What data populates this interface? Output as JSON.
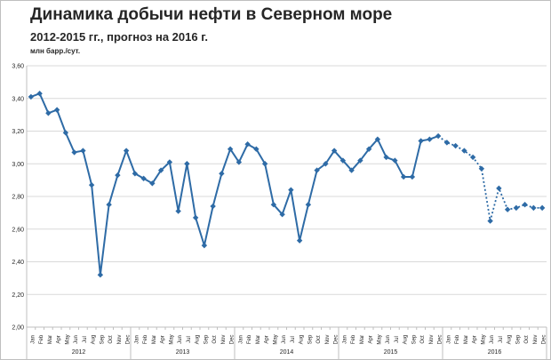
{
  "title": "Динамика добычи нефти в Северном море",
  "subtitle": "2012-2015 гг., прогноз на 2016 г.",
  "unit": "млн барр./сут.",
  "colors": {
    "series": "#2e6ba6",
    "grid": "#d9d9d9",
    "axis": "#bfbfbf"
  },
  "chart_data": {
    "type": "line",
    "ylim": [
      2.0,
      3.6
    ],
    "yticks": [
      "2,00",
      "2,20",
      "2,40",
      "2,60",
      "2,80",
      "3,00",
      "3,20",
      "3,40",
      "3,60"
    ],
    "grid": true,
    "months": [
      "Jan",
      "Feb",
      "Mar",
      "Apr",
      "May",
      "Jun",
      "Jul",
      "Aug",
      "Sep",
      "Oct",
      "Nov",
      "Dec"
    ],
    "years": [
      "2012",
      "2013",
      "2014",
      "2015",
      "2016"
    ],
    "series": [
      {
        "style": "solid",
        "values": [
          3.41,
          3.43,
          3.31,
          3.33,
          3.19,
          3.07,
          3.08,
          2.87,
          2.32,
          2.75,
          2.93,
          3.08,
          2.94,
          2.91,
          2.88,
          2.96,
          3.01,
          2.71,
          3.0,
          2.67,
          2.5,
          2.74,
          2.94,
          3.09,
          3.01,
          3.12,
          3.09,
          3.0,
          2.75,
          2.69,
          2.84,
          2.53,
          2.75,
          2.96,
          3.0,
          3.08,
          3.02,
          2.96,
          3.02,
          3.09,
          3.15,
          3.04,
          3.02,
          2.92,
          2.92,
          3.14,
          3.15,
          3.17
        ]
      },
      {
        "style": "dotted",
        "values": [
          3.13,
          3.11,
          3.08,
          3.04,
          2.97,
          2.65,
          2.85,
          2.72,
          2.73,
          2.75,
          2.73,
          2.73
        ]
      }
    ]
  }
}
